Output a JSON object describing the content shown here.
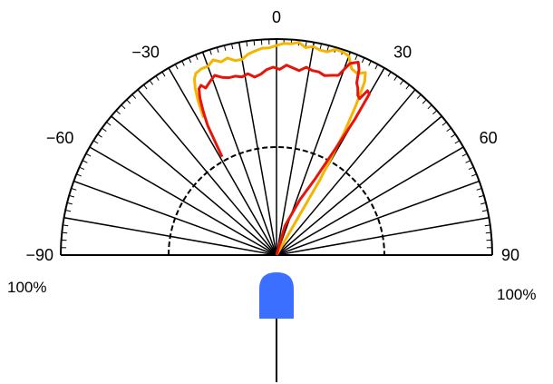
{
  "chart_data": {
    "type": "polar",
    "angle_ticks": [
      {
        "angle": 0,
        "label": "0"
      },
      {
        "angle": -30,
        "label": "−30"
      },
      {
        "angle": 30,
        "label": "30"
      },
      {
        "angle": -60,
        "label": "−60"
      },
      {
        "angle": 60,
        "label": "60"
      },
      {
        "angle": -90,
        "label": "−90"
      },
      {
        "angle": 90,
        "label": "90"
      }
    ],
    "radial_ticks": [
      {
        "side": "left",
        "label": "100%"
      },
      {
        "side": "right",
        "label": "100%"
      }
    ],
    "angle_range": [
      -90,
      90
    ],
    "radius_range": [
      0,
      100
    ],
    "rings": [
      50,
      100
    ],
    "spoke_angles": [
      -80,
      -70,
      -60,
      -50,
      -40,
      -30,
      -20,
      -10,
      0,
      10,
      20,
      30,
      40,
      50,
      60,
      70,
      80
    ],
    "series": [
      {
        "color": "#f5b400",
        "points": [
          [
            -28,
            72
          ],
          [
            -27,
            80
          ],
          [
            -26,
            86
          ],
          [
            -25,
            90
          ],
          [
            -24,
            92
          ],
          [
            -22,
            93
          ],
          [
            -20,
            93
          ],
          [
            -18,
            95
          ],
          [
            -16,
            93
          ],
          [
            -14,
            94
          ],
          [
            -12,
            92
          ],
          [
            -10,
            92
          ],
          [
            -8,
            94
          ],
          [
            -6,
            95
          ],
          [
            -4,
            96
          ],
          [
            -2,
            96
          ],
          [
            0,
            97
          ],
          [
            2,
            98
          ],
          [
            4,
            98
          ],
          [
            6,
            99
          ],
          [
            8,
            97
          ],
          [
            10,
            98
          ],
          [
            12,
            97
          ],
          [
            14,
            97
          ],
          [
            16,
            99
          ],
          [
            18,
            99
          ],
          [
            20,
            98
          ],
          [
            22,
            93
          ],
          [
            24,
            92
          ],
          [
            26,
            94
          ],
          [
            27,
            90
          ],
          [
            28,
            78
          ],
          [
            29,
            64
          ],
          [
            30,
            40
          ],
          [
            30,
            20
          ],
          [
            0,
            0
          ]
        ]
      },
      {
        "color": "#e8140a",
        "points": [
          [
            -29,
            52
          ],
          [
            -28,
            68
          ],
          [
            -27,
            75
          ],
          [
            -26,
            81
          ],
          [
            -25,
            85
          ],
          [
            -24,
            86
          ],
          [
            -23,
            84
          ],
          [
            -21,
            86
          ],
          [
            -19,
            88
          ],
          [
            -17,
            86
          ],
          [
            -15,
            85
          ],
          [
            -13,
            85
          ],
          [
            -11,
            84
          ],
          [
            -9,
            85
          ],
          [
            -7,
            83
          ],
          [
            -5,
            84
          ],
          [
            -3,
            86
          ],
          [
            -1,
            87
          ],
          [
            1,
            86
          ],
          [
            3,
            88
          ],
          [
            5,
            87
          ],
          [
            7,
            86
          ],
          [
            9,
            88
          ],
          [
            11,
            87
          ],
          [
            13,
            87
          ],
          [
            15,
            86
          ],
          [
            17,
            87
          ],
          [
            19,
            88
          ],
          [
            21,
            95
          ],
          [
            23,
            97
          ],
          [
            24,
            94
          ],
          [
            25,
            88
          ],
          [
            26,
            86
          ],
          [
            27,
            83
          ],
          [
            28,
            82
          ],
          [
            29,
            87
          ],
          [
            30,
            86
          ],
          [
            30,
            72
          ],
          [
            29,
            56
          ],
          [
            27,
            40
          ],
          [
            23,
            28
          ],
          [
            16,
            14
          ],
          [
            0,
            0
          ]
        ]
      }
    ]
  },
  "colors": {
    "led_body": "#3a6fff",
    "grid": "#000000"
  }
}
